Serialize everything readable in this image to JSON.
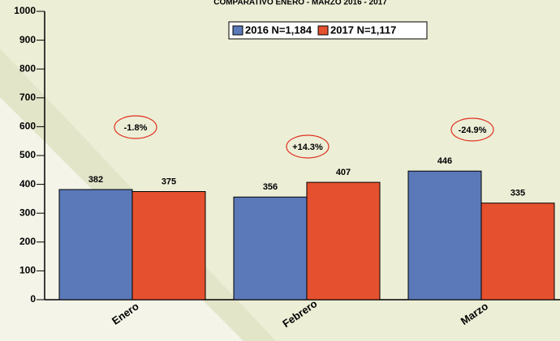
{
  "chart_data": {
    "type": "bar",
    "title": "COMPARATIVO ENERO - MARZO 2016 - 2017",
    "categories": [
      "Enero",
      "Febrero",
      "Marzo"
    ],
    "series": [
      {
        "name": "2016 N=1,184",
        "color": "#5b78b8",
        "values": [
          382,
          356,
          446
        ]
      },
      {
        "name": "2017 N=1,117",
        "color": "#e5502e",
        "values": [
          375,
          407,
          335
        ]
      }
    ],
    "annotations": [
      "-1.8%",
      "+14.3%",
      "-24.9%"
    ],
    "ylim": [
      0,
      1000
    ],
    "yticks": [
      0,
      100,
      200,
      300,
      400,
      500,
      600,
      700,
      800,
      900,
      1000
    ],
    "legend": "top"
  }
}
